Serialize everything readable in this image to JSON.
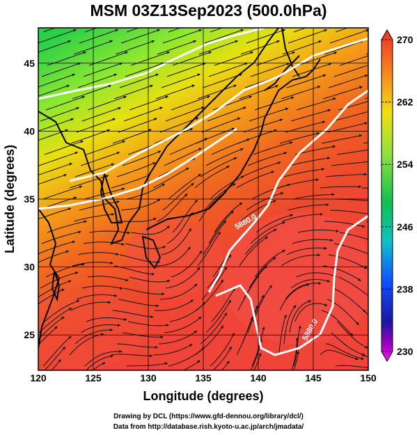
{
  "title": "MSM 03Z13Sep2023 (500.0hPa)",
  "x_axis": {
    "label": "Longitude (degrees)",
    "range": [
      120,
      150
    ],
    "ticks": [
      "120",
      "125",
      "130",
      "135",
      "140",
      "145",
      "150"
    ]
  },
  "y_axis": {
    "label": "Latitude  (degrees)",
    "range": [
      22.4,
      47.6
    ],
    "ticks": [
      "25",
      "30",
      "35",
      "40",
      "45"
    ]
  },
  "colorbar": {
    "range": [
      230,
      270
    ],
    "labels": [
      "270",
      "262",
      "254",
      "246",
      "238",
      "230"
    ],
    "colors": [
      "#e8ff8a",
      "#00b84c",
      "#00c8c8",
      "#0050ff",
      "#101090",
      "#ff00ff"
    ]
  },
  "contours": [
    {
      "label": "5880.0",
      "kind": "geopotential-height"
    },
    {
      "label": "5880.0",
      "kind": "geopotential-height"
    }
  ],
  "credits": {
    "line1": "Drawing by DCL (https://www.gfd-dennou.org/library/dcl/)",
    "line2": "Data from http://database.rish.kyoto-u.ac.jp/arch/jmadata/"
  }
}
